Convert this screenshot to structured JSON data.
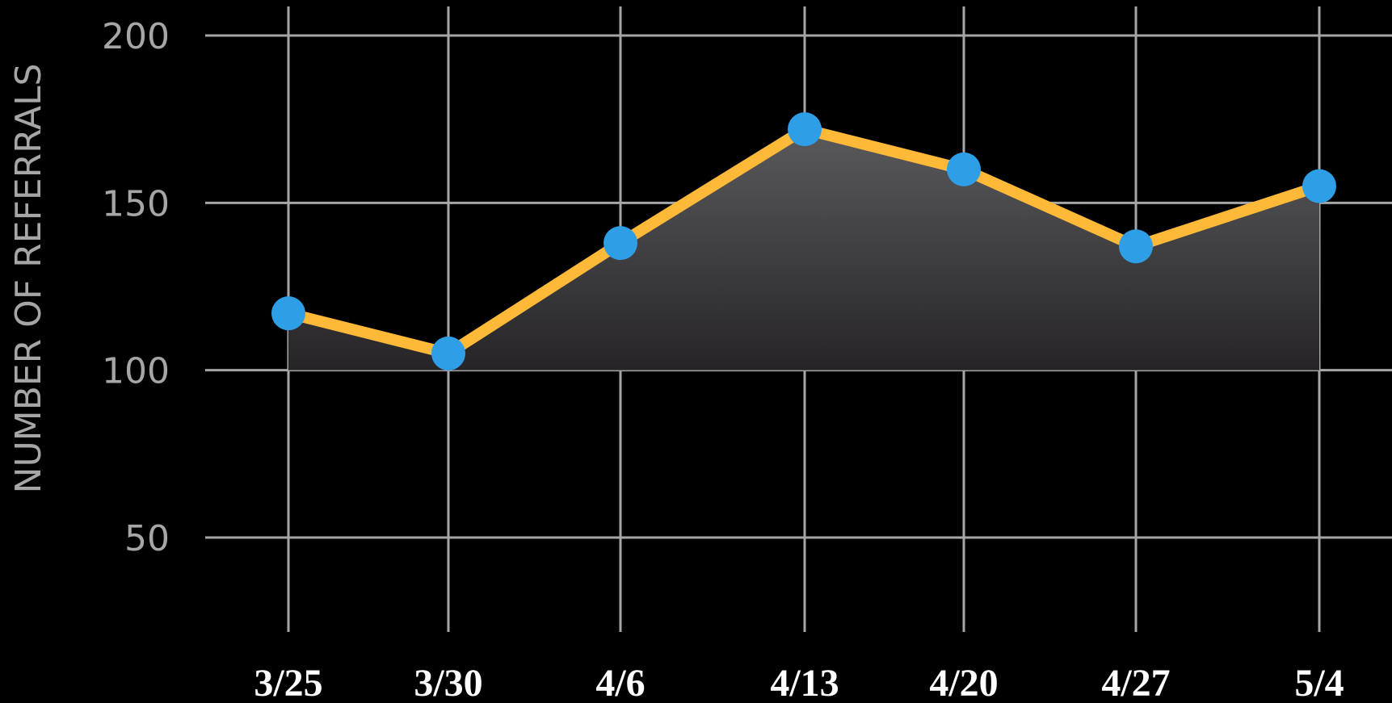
{
  "chart_data": {
    "type": "area",
    "title": "",
    "xlabel": "",
    "ylabel": "NUMBER OF REFERRALS",
    "categories": [
      "3/25",
      "3/30",
      "4/6",
      "4/13",
      "4/20",
      "4/27",
      "5/4"
    ],
    "series": [
      {
        "values": [
          117,
          105,
          138,
          172,
          160,
          137,
          155
        ]
      }
    ],
    "yticks": [
      {
        "value": 50,
        "label": "50"
      },
      {
        "value": 100,
        "label": "100"
      },
      {
        "value": 150,
        "label": "150"
      },
      {
        "value": 200,
        "label": "200"
      }
    ],
    "ylim": [
      24,
      208
    ],
    "area_baseline": 100,
    "grid": true,
    "colors": {
      "line": "#FFB938",
      "marker": "#2E9FE6",
      "grid": "#A6A6A6",
      "area_top": "#5A5A5C",
      "area_bottom": "#262426",
      "background": "#000000"
    }
  }
}
